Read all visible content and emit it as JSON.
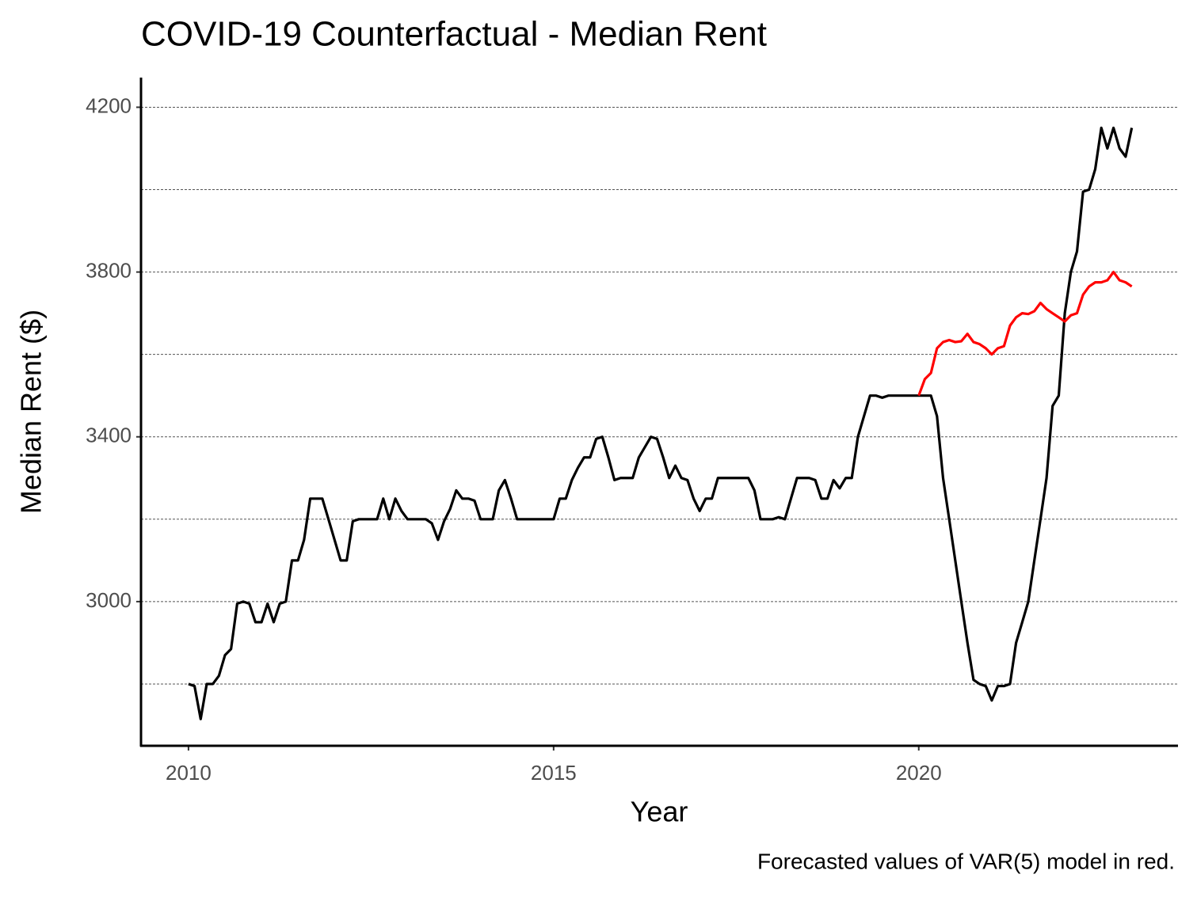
{
  "chart_data": {
    "type": "line",
    "title": "COVID-19 Counterfactual - Median Rent",
    "x_label": "Year",
    "y_label": "Median Rent ($)",
    "caption": "Forecasted values of VAR(5) model in red.",
    "x": [
      2010,
      2010.083,
      2010.167,
      2010.25,
      2010.333,
      2010.417,
      2010.5,
      2010.583,
      2010.667,
      2010.75,
      2010.833,
      2010.917,
      2011,
      2011.083,
      2011.167,
      2011.25,
      2011.333,
      2011.417,
      2011.5,
      2011.583,
      2011.667,
      2011.75,
      2011.833,
      2011.917,
      2012,
      2012.083,
      2012.167,
      2012.25,
      2012.333,
      2012.417,
      2012.5,
      2012.583,
      2012.667,
      2012.75,
      2012.833,
      2012.917,
      2013,
      2013.083,
      2013.167,
      2013.25,
      2013.333,
      2013.417,
      2013.5,
      2013.583,
      2013.667,
      2013.75,
      2013.833,
      2013.917,
      2014,
      2014.083,
      2014.167,
      2014.25,
      2014.333,
      2014.417,
      2014.5,
      2014.583,
      2014.667,
      2014.75,
      2014.833,
      2014.917,
      2015,
      2015.083,
      2015.167,
      2015.25,
      2015.333,
      2015.417,
      2015.5,
      2015.583,
      2015.667,
      2015.75,
      2015.833,
      2015.917,
      2016,
      2016.083,
      2016.167,
      2016.25,
      2016.333,
      2016.417,
      2016.5,
      2016.583,
      2016.667,
      2016.75,
      2016.833,
      2016.917,
      2017,
      2017.083,
      2017.167,
      2017.25,
      2017.333,
      2017.417,
      2017.5,
      2017.583,
      2017.667,
      2017.75,
      2017.833,
      2017.917,
      2018,
      2018.083,
      2018.167,
      2018.25,
      2018.333,
      2018.417,
      2018.5,
      2018.583,
      2018.667,
      2018.75,
      2018.833,
      2018.917,
      2019,
      2019.083,
      2019.167,
      2019.25,
      2019.333,
      2019.417,
      2019.5,
      2019.583,
      2019.667,
      2019.75,
      2019.833,
      2019.917,
      2020,
      2020.083,
      2020.167,
      2020.25,
      2020.333,
      2020.417,
      2020.5,
      2020.583,
      2020.667,
      2020.75,
      2020.833,
      2020.917,
      2021,
      2021.083,
      2021.167,
      2021.25,
      2021.333,
      2021.417,
      2021.5,
      2021.583,
      2021.667,
      2021.75,
      2021.833,
      2021.917,
      2022,
      2022.083,
      2022.167,
      2022.25,
      2022.333,
      2022.417,
      2022.5,
      2022.583,
      2022.667,
      2022.75,
      2022.833,
      2022.917
    ],
    "series": [
      {
        "color": "#000000",
        "values": [
          2800,
          2795,
          2715,
          2800,
          2800,
          2820,
          2870,
          2885,
          2995,
          3000,
          2995,
          2950,
          2950,
          2995,
          2950,
          2995,
          3000,
          3100,
          3100,
          3150,
          3250,
          3250,
          3250,
          3200,
          3150,
          3100,
          3100,
          3195,
          3200,
          3200,
          3200,
          3200,
          3250,
          3200,
          3250,
          3220,
          3200,
          3200,
          3200,
          3200,
          3190,
          3150,
          3195,
          3225,
          3270,
          3250,
          3250,
          3245,
          3200,
          3200,
          3200,
          3270,
          3295,
          3250,
          3200,
          3200,
          3200,
          3200,
          3200,
          3200,
          3200,
          3250,
          3250,
          3295,
          3325,
          3350,
          3350,
          3395,
          3400,
          3350,
          3295,
          3300,
          3300,
          3300,
          3350,
          3375,
          3400,
          3395,
          3350,
          3300,
          3330,
          3300,
          3295,
          3250,
          3220,
          3250,
          3250,
          3300,
          3300,
          3300,
          3300,
          3300,
          3300,
          3270,
          3200,
          3200,
          3200,
          3205,
          3200,
          3250,
          3300,
          3300,
          3300,
          3295,
          3250,
          3250,
          3295,
          3275,
          3300,
          3300,
          3400,
          3450,
          3500,
          3500,
          3495,
          3500,
          3500,
          3500,
          3500,
          3500,
          3500,
          3500,
          3500,
          3450,
          3300,
          3200,
          3100,
          3000,
          2900,
          2810,
          2800,
          2795,
          2760,
          2795,
          2795,
          2800,
          2900,
          2950,
          3000,
          3100,
          3200,
          3300,
          3475,
          3500,
          3700,
          3800,
          3850,
          3995,
          4000,
          4050,
          4150,
          4100,
          4150,
          4100,
          4080,
          4150
        ]
      },
      {
        "color": "#ff0000",
        "values": [
          null,
          null,
          null,
          null,
          null,
          null,
          null,
          null,
          null,
          null,
          null,
          null,
          null,
          null,
          null,
          null,
          null,
          null,
          null,
          null,
          null,
          null,
          null,
          null,
          null,
          null,
          null,
          null,
          null,
          null,
          null,
          null,
          null,
          null,
          null,
          null,
          null,
          null,
          null,
          null,
          null,
          null,
          null,
          null,
          null,
          null,
          null,
          null,
          null,
          null,
          null,
          null,
          null,
          null,
          null,
          null,
          null,
          null,
          null,
          null,
          null,
          null,
          null,
          null,
          null,
          null,
          null,
          null,
          null,
          null,
          null,
          null,
          null,
          null,
          null,
          null,
          null,
          null,
          null,
          null,
          null,
          null,
          null,
          null,
          null,
          null,
          null,
          null,
          null,
          null,
          null,
          null,
          null,
          null,
          null,
          null,
          null,
          null,
          null,
          null,
          null,
          null,
          null,
          null,
          null,
          null,
          null,
          null,
          null,
          null,
          null,
          null,
          null,
          null,
          null,
          null,
          null,
          null,
          null,
          null,
          3500,
          3540,
          3555,
          3615,
          3630,
          3635,
          3630,
          3632,
          3650,
          3630,
          3625,
          3615,
          3600,
          3615,
          3620,
          3670,
          3690,
          3700,
          3698,
          3705,
          3725,
          3710,
          3700,
          3690,
          3680,
          3695,
          3700,
          3745,
          3765,
          3775,
          3775,
          3780,
          3800,
          3780,
          3775,
          3765
        ]
      }
    ],
    "xlim": [
      2009.35,
      2023.55
    ],
    "xticks": [
      2010,
      2015,
      2020
    ],
    "ylim": [
      2650,
      4272
    ],
    "yticks": [
      3000,
      3400,
      3800,
      4200
    ],
    "ygrid": [
      2800,
      3000,
      3200,
      3400,
      3600,
      3800,
      4000,
      4200
    ],
    "grid": true
  }
}
